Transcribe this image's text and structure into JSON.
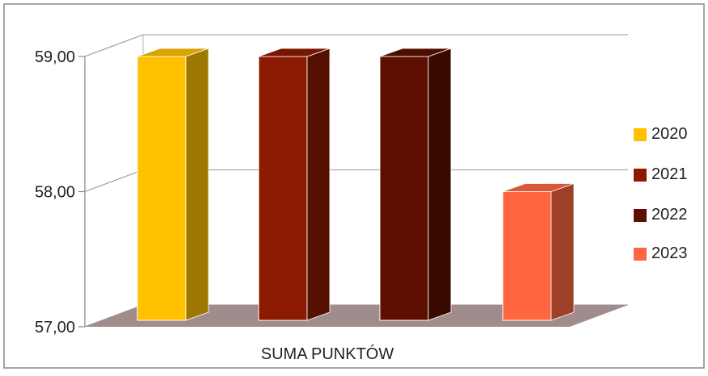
{
  "chart_data": {
    "type": "bar",
    "title": "",
    "xlabel": "SUMA PUNKTÓW",
    "ylabel": "",
    "categories": [
      "SUMA PUNKTÓW"
    ],
    "ylim": [
      57,
      59
    ],
    "yticks": [
      "57,00",
      "58,00",
      "59,00"
    ],
    "grid": true,
    "legend_position": "right",
    "series": [
      {
        "name": "2020",
        "values": [
          59.0
        ],
        "color": "#FFC000"
      },
      {
        "name": "2021",
        "values": [
          59.0
        ],
        "color": "#8B1A00"
      },
      {
        "name": "2022",
        "values": [
          59.0
        ],
        "color": "#5C0F00"
      },
      {
        "name": "2023",
        "values": [
          58.0
        ],
        "color": "#FF6640"
      }
    ]
  }
}
